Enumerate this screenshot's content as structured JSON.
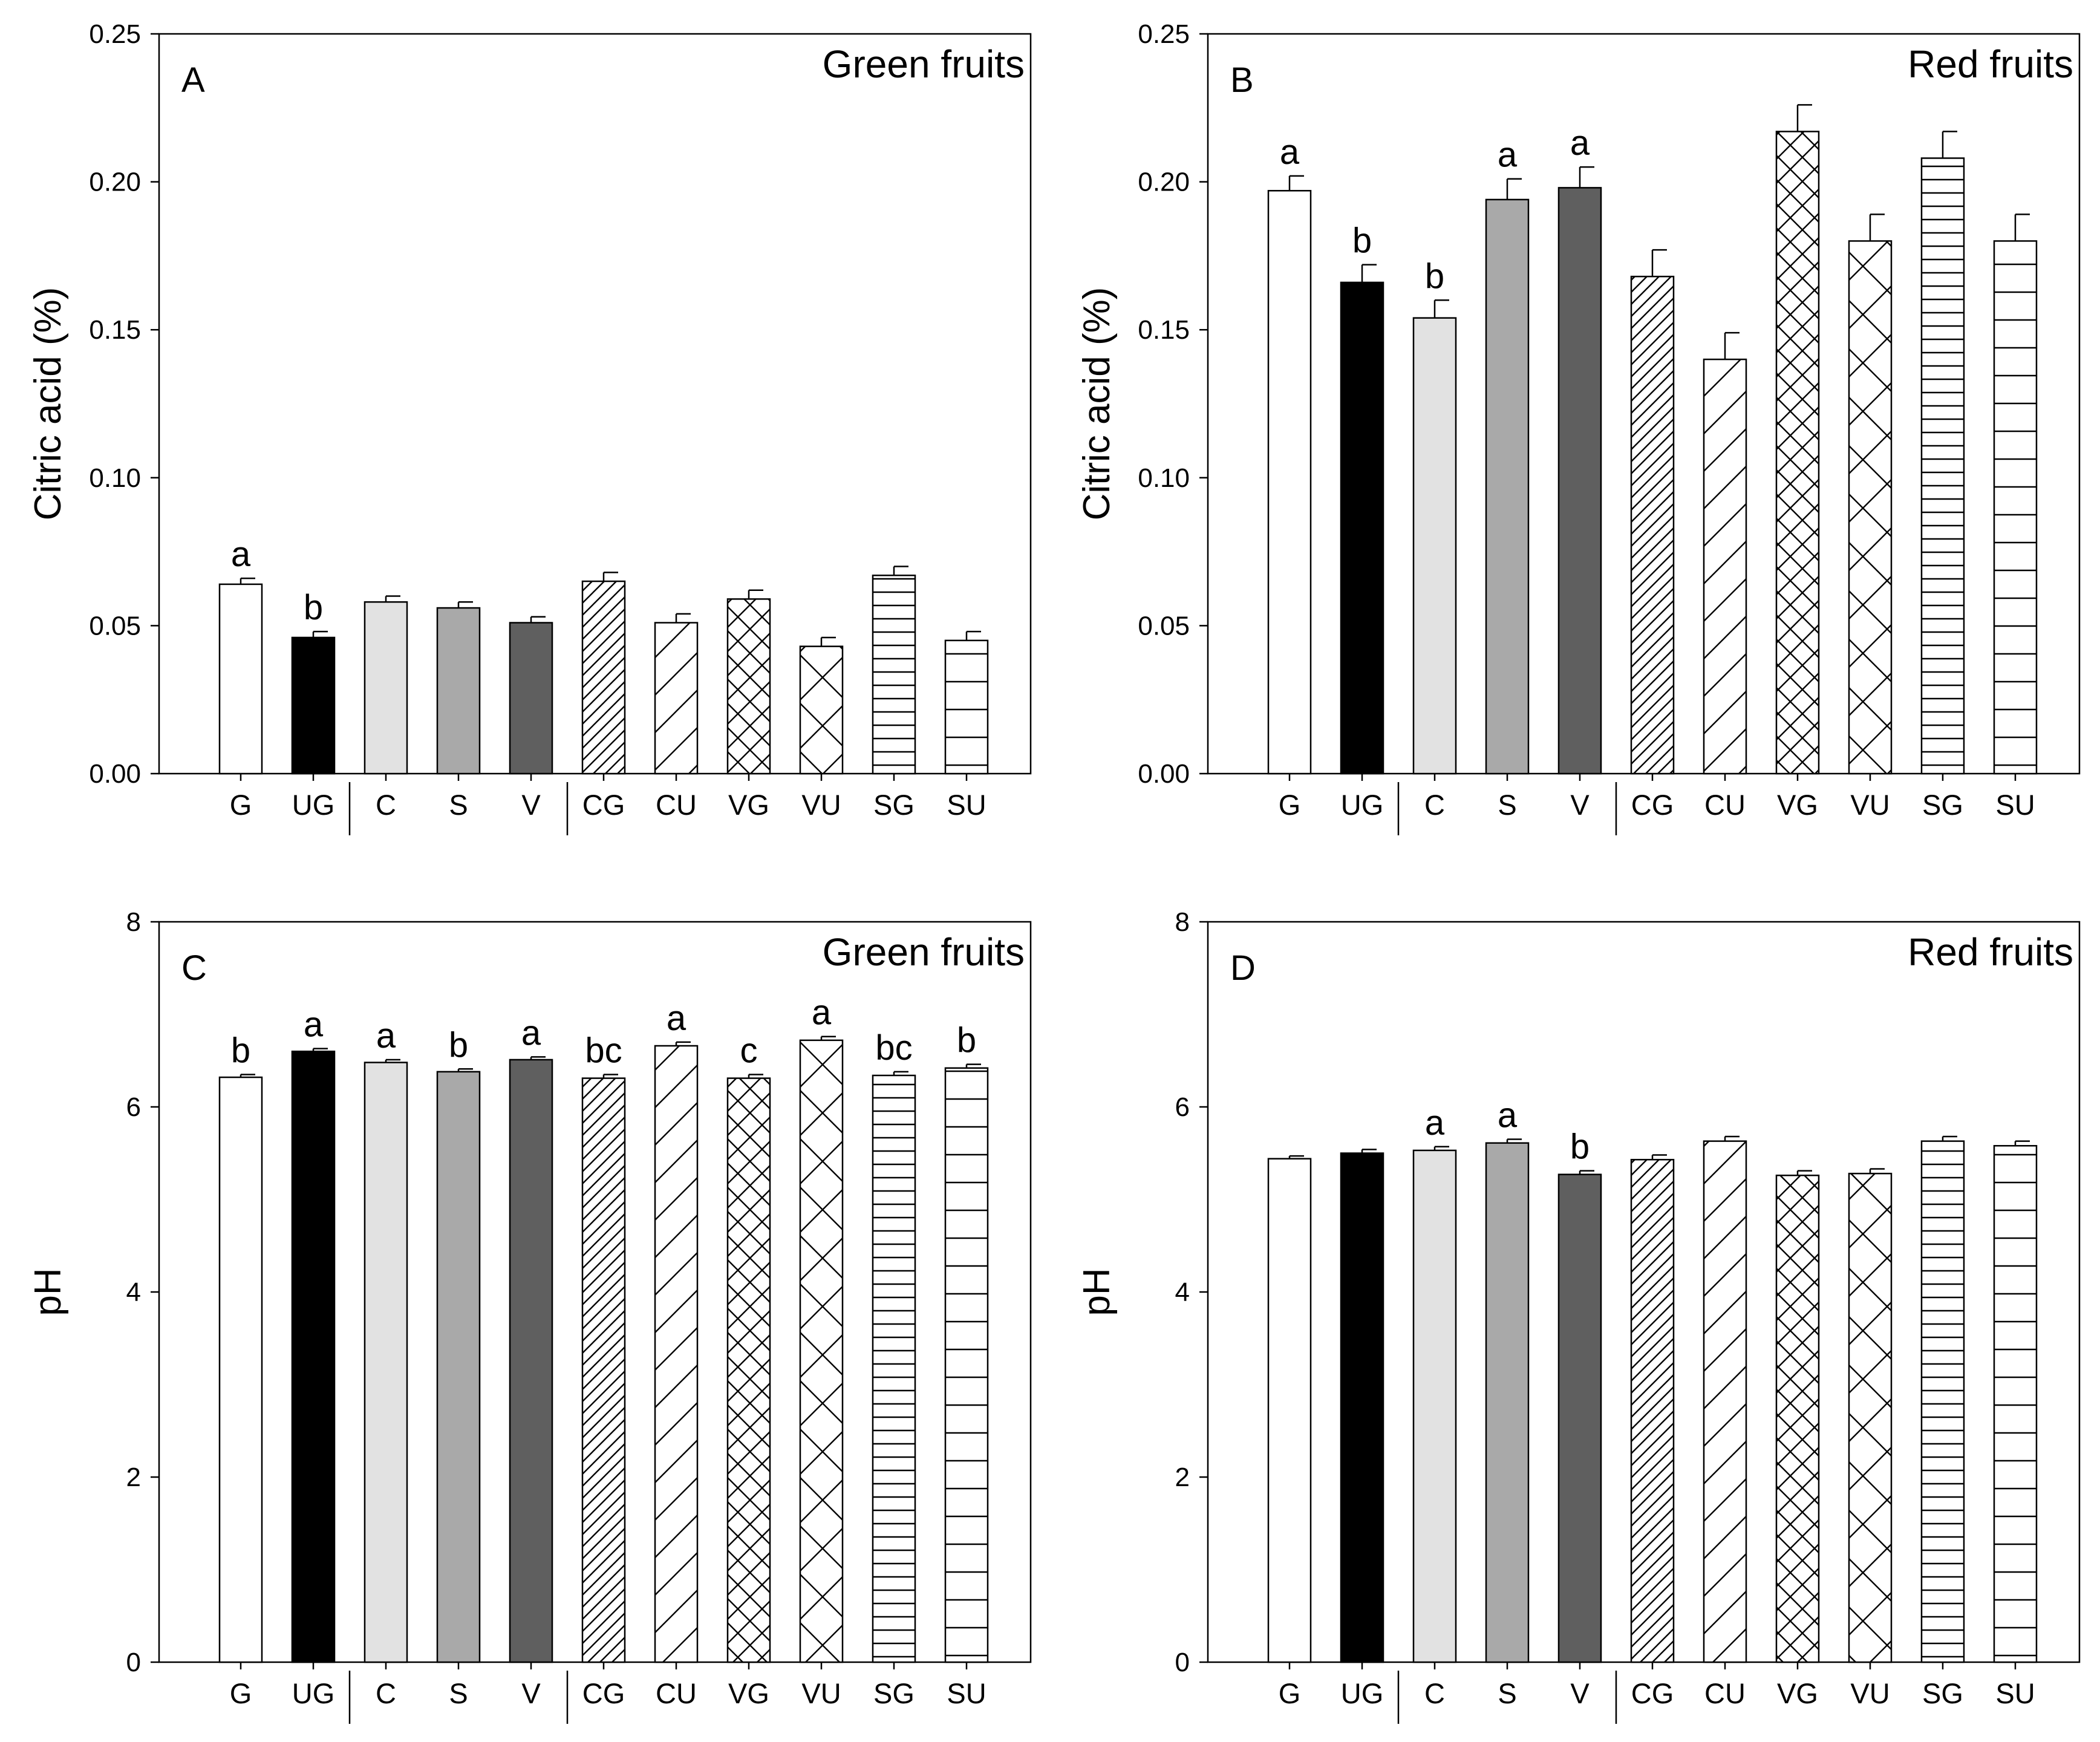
{
  "colors": {
    "white": "#ffffff",
    "black": "#000000",
    "light_gray": "#e2e2e2",
    "mid_gray": "#a9a9a9",
    "dark_gray": "#5f5f5f"
  },
  "categories": [
    "G",
    "UG",
    "C",
    "S",
    "V",
    "CG",
    "CU",
    "VG",
    "VU",
    "SG",
    "SU"
  ],
  "bar_styles": [
    {
      "fill": "white",
      "pattern": "none"
    },
    {
      "fill": "black",
      "pattern": "none"
    },
    {
      "fill": "light_gray",
      "pattern": "none"
    },
    {
      "fill": "mid_gray",
      "pattern": "none"
    },
    {
      "fill": "dark_gray",
      "pattern": "none"
    },
    {
      "fill": "white",
      "pattern": "diagonal-dense"
    },
    {
      "fill": "white",
      "pattern": "diagonal-sparse"
    },
    {
      "fill": "white",
      "pattern": "crosshatch-dense"
    },
    {
      "fill": "white",
      "pattern": "crosshatch-sparse"
    },
    {
      "fill": "white",
      "pattern": "horizontal-dense"
    },
    {
      "fill": "white",
      "pattern": "horizontal-sparse"
    }
  ],
  "group_separators_after": [
    1,
    4
  ],
  "chart_data": [
    {
      "type": "bar",
      "panel": "A",
      "title": "Green fruits",
      "ylabel": "Citric acid (%)",
      "xlabel": "",
      "ylim": [
        0,
        0.25
      ],
      "yticks": [
        "0.00",
        "0.05",
        "0.10",
        "0.15",
        "0.20",
        "0.25"
      ],
      "categories": [
        "G",
        "UG",
        "C",
        "S",
        "V",
        "CG",
        "CU",
        "VG",
        "VU",
        "SG",
        "SU"
      ],
      "values": [
        0.064,
        0.046,
        0.058,
        0.056,
        0.051,
        0.065,
        0.051,
        0.059,
        0.043,
        0.067,
        0.045
      ],
      "errors": [
        0.002,
        0.002,
        0.002,
        0.002,
        0.002,
        0.003,
        0.003,
        0.003,
        0.003,
        0.003,
        0.003
      ],
      "significance": [
        "a",
        "b",
        "",
        "",
        "",
        "",
        "",
        "",
        "",
        "",
        ""
      ]
    },
    {
      "type": "bar",
      "panel": "B",
      "title": "Red fruits",
      "ylabel": "Citric acid (%)",
      "xlabel": "",
      "ylim": [
        0,
        0.25
      ],
      "yticks": [
        "0.00",
        "0.05",
        "0.10",
        "0.15",
        "0.20",
        "0.25"
      ],
      "categories": [
        "G",
        "UG",
        "C",
        "S",
        "V",
        "CG",
        "CU",
        "VG",
        "VU",
        "SG",
        "SU"
      ],
      "values": [
        0.197,
        0.166,
        0.154,
        0.194,
        0.198,
        0.168,
        0.14,
        0.217,
        0.18,
        0.208,
        0.18
      ],
      "errors": [
        0.005,
        0.006,
        0.006,
        0.007,
        0.007,
        0.009,
        0.009,
        0.009,
        0.009,
        0.009,
        0.009
      ],
      "significance": [
        "a",
        "b",
        "b",
        "a",
        "a",
        "",
        "",
        "",
        "",
        "",
        ""
      ]
    },
    {
      "type": "bar",
      "panel": "C",
      "title": "Green fruits",
      "ylabel": "pH",
      "xlabel": "",
      "ylim": [
        0,
        8
      ],
      "yticks": [
        "0",
        "2",
        "4",
        "6",
        "8"
      ],
      "categories": [
        "G",
        "UG",
        "C",
        "S",
        "V",
        "CG",
        "CU",
        "VG",
        "VU",
        "SG",
        "SU"
      ],
      "values": [
        6.32,
        6.6,
        6.48,
        6.38,
        6.51,
        6.31,
        6.66,
        6.31,
        6.72,
        6.34,
        6.42
      ],
      "errors": [
        0.03,
        0.03,
        0.03,
        0.03,
        0.03,
        0.04,
        0.04,
        0.04,
        0.04,
        0.04,
        0.04
      ],
      "significance": [
        "b",
        "a",
        "a",
        "b",
        "a",
        "bc",
        "a",
        "c",
        "a",
        "bc",
        "b"
      ]
    },
    {
      "type": "bar",
      "panel": "D",
      "title": "Red fruits",
      "ylabel": "pH",
      "xlabel": "",
      "ylim": [
        0,
        8
      ],
      "yticks": [
        "0",
        "2",
        "4",
        "6",
        "8"
      ],
      "categories": [
        "G",
        "UG",
        "C",
        "S",
        "V",
        "CG",
        "CU",
        "VG",
        "VU",
        "SG",
        "SU"
      ],
      "values": [
        5.44,
        5.5,
        5.53,
        5.61,
        5.27,
        5.43,
        5.63,
        5.26,
        5.28,
        5.63,
        5.58
      ],
      "errors": [
        0.03,
        0.04,
        0.04,
        0.04,
        0.04,
        0.05,
        0.05,
        0.05,
        0.05,
        0.05,
        0.05
      ],
      "significance": [
        "",
        "",
        "a",
        "a",
        "b",
        "",
        "",
        "",
        "",
        "",
        ""
      ]
    }
  ]
}
